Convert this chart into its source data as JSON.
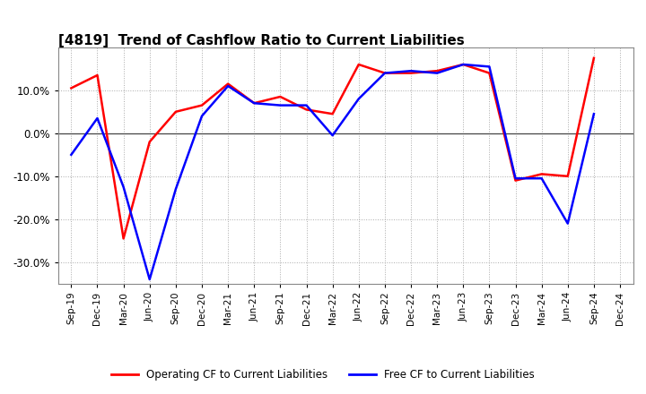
{
  "title": "[4819]  Trend of Cashflow Ratio to Current Liabilities",
  "x_labels": [
    "Sep-19",
    "Dec-19",
    "Mar-20",
    "Jun-20",
    "Sep-20",
    "Dec-20",
    "Mar-21",
    "Jun-21",
    "Sep-21",
    "Dec-21",
    "Mar-22",
    "Jun-22",
    "Sep-22",
    "Dec-22",
    "Mar-23",
    "Jun-23",
    "Sep-23",
    "Dec-23",
    "Mar-24",
    "Jun-24",
    "Sep-24",
    "Dec-24"
  ],
  "operating_cf": [
    10.5,
    13.5,
    -24.5,
    -2.0,
    5.0,
    6.5,
    11.5,
    7.0,
    8.5,
    5.5,
    4.5,
    16.0,
    14.0,
    14.0,
    14.5,
    16.0,
    14.0,
    -11.0,
    -9.5,
    -10.0,
    17.5,
    null
  ],
  "free_cf": [
    -5.0,
    3.5,
    -12.5,
    -34.0,
    -13.0,
    4.0,
    11.0,
    7.0,
    6.5,
    6.5,
    -0.5,
    8.0,
    14.0,
    14.5,
    14.0,
    16.0,
    15.5,
    -10.5,
    -10.5,
    -21.0,
    4.5,
    null
  ],
  "ylim": [
    -35,
    20
  ],
  "yticks": [
    -30,
    -20,
    -10,
    0,
    10
  ],
  "operating_color": "#FF0000",
  "free_color": "#0000FF",
  "background_color": "#FFFFFF",
  "plot_bg_color": "#FFFFFF",
  "grid_color": "#AAAAAA",
  "legend_op": "Operating CF to Current Liabilities",
  "legend_free": "Free CF to Current Liabilities"
}
